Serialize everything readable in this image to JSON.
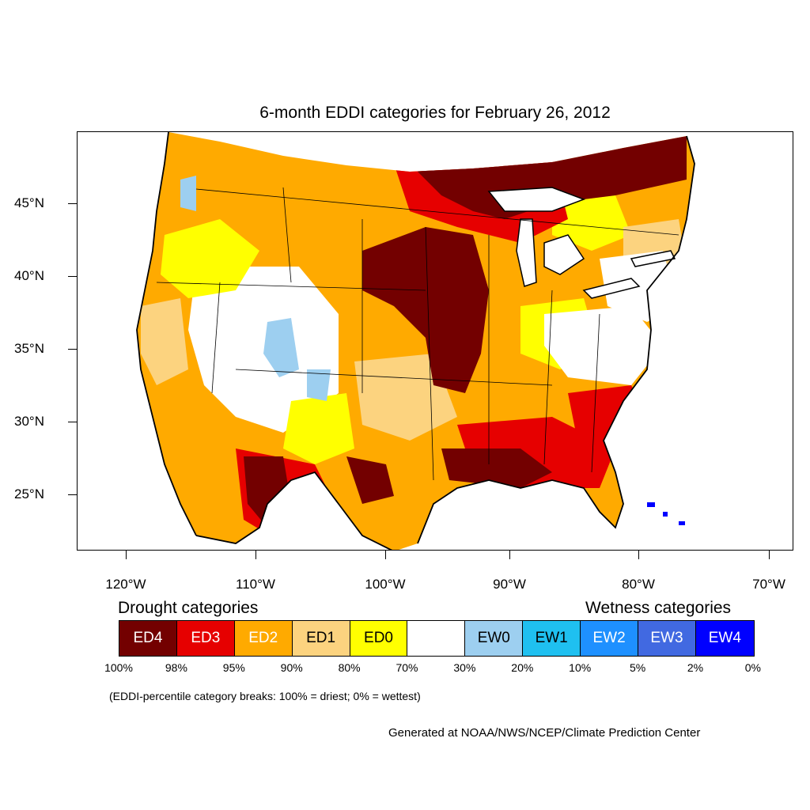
{
  "title": "6-month EDDI categories for February 26, 2012",
  "latitude_labels": [
    "45°N",
    "40°N",
    "35°N",
    "30°N",
    "25°N"
  ],
  "longitude_labels": [
    "120°W",
    "110°W",
    "100°W",
    "90°W",
    "80°W",
    "70°W"
  ],
  "legend": {
    "drought_heading": "Drought categories",
    "wetness_heading": "Wetness categories",
    "categories": [
      {
        "label": "ED4",
        "color": "#730000",
        "text_color": "#ffffff"
      },
      {
        "label": "ED3",
        "color": "#e60000",
        "text_color": "#ffffff"
      },
      {
        "label": "ED2",
        "color": "#ffaa00",
        "text_color": "#ffffff"
      },
      {
        "label": "ED1",
        "color": "#fcd37f",
        "text_color": "#000000"
      },
      {
        "label": "ED0",
        "color": "#ffff00",
        "text_color": "#000000"
      },
      {
        "label": "",
        "color": "#ffffff",
        "text_color": "#000000"
      },
      {
        "label": "EW0",
        "color": "#9dcff0",
        "text_color": "#000000"
      },
      {
        "label": "EW1",
        "color": "#1fc0f0",
        "text_color": "#000000"
      },
      {
        "label": "EW2",
        "color": "#1e90ff",
        "text_color": "#ffffff"
      },
      {
        "label": "EW3",
        "color": "#4169e1",
        "text_color": "#ffffff"
      },
      {
        "label": "EW4",
        "color": "#0000ff",
        "text_color": "#ffffff"
      }
    ],
    "percentiles": [
      "100%",
      "98%",
      "95%",
      "90%",
      "80%",
      "70%",
      "30%",
      "20%",
      "10%",
      "5%",
      "2%",
      "0%"
    ]
  },
  "note": "(EDDI-percentile category breaks: 100% = driest; 0% = wettest)",
  "credit": "Generated at NOAA/NWS/NCEP/Climate Prediction Center"
}
